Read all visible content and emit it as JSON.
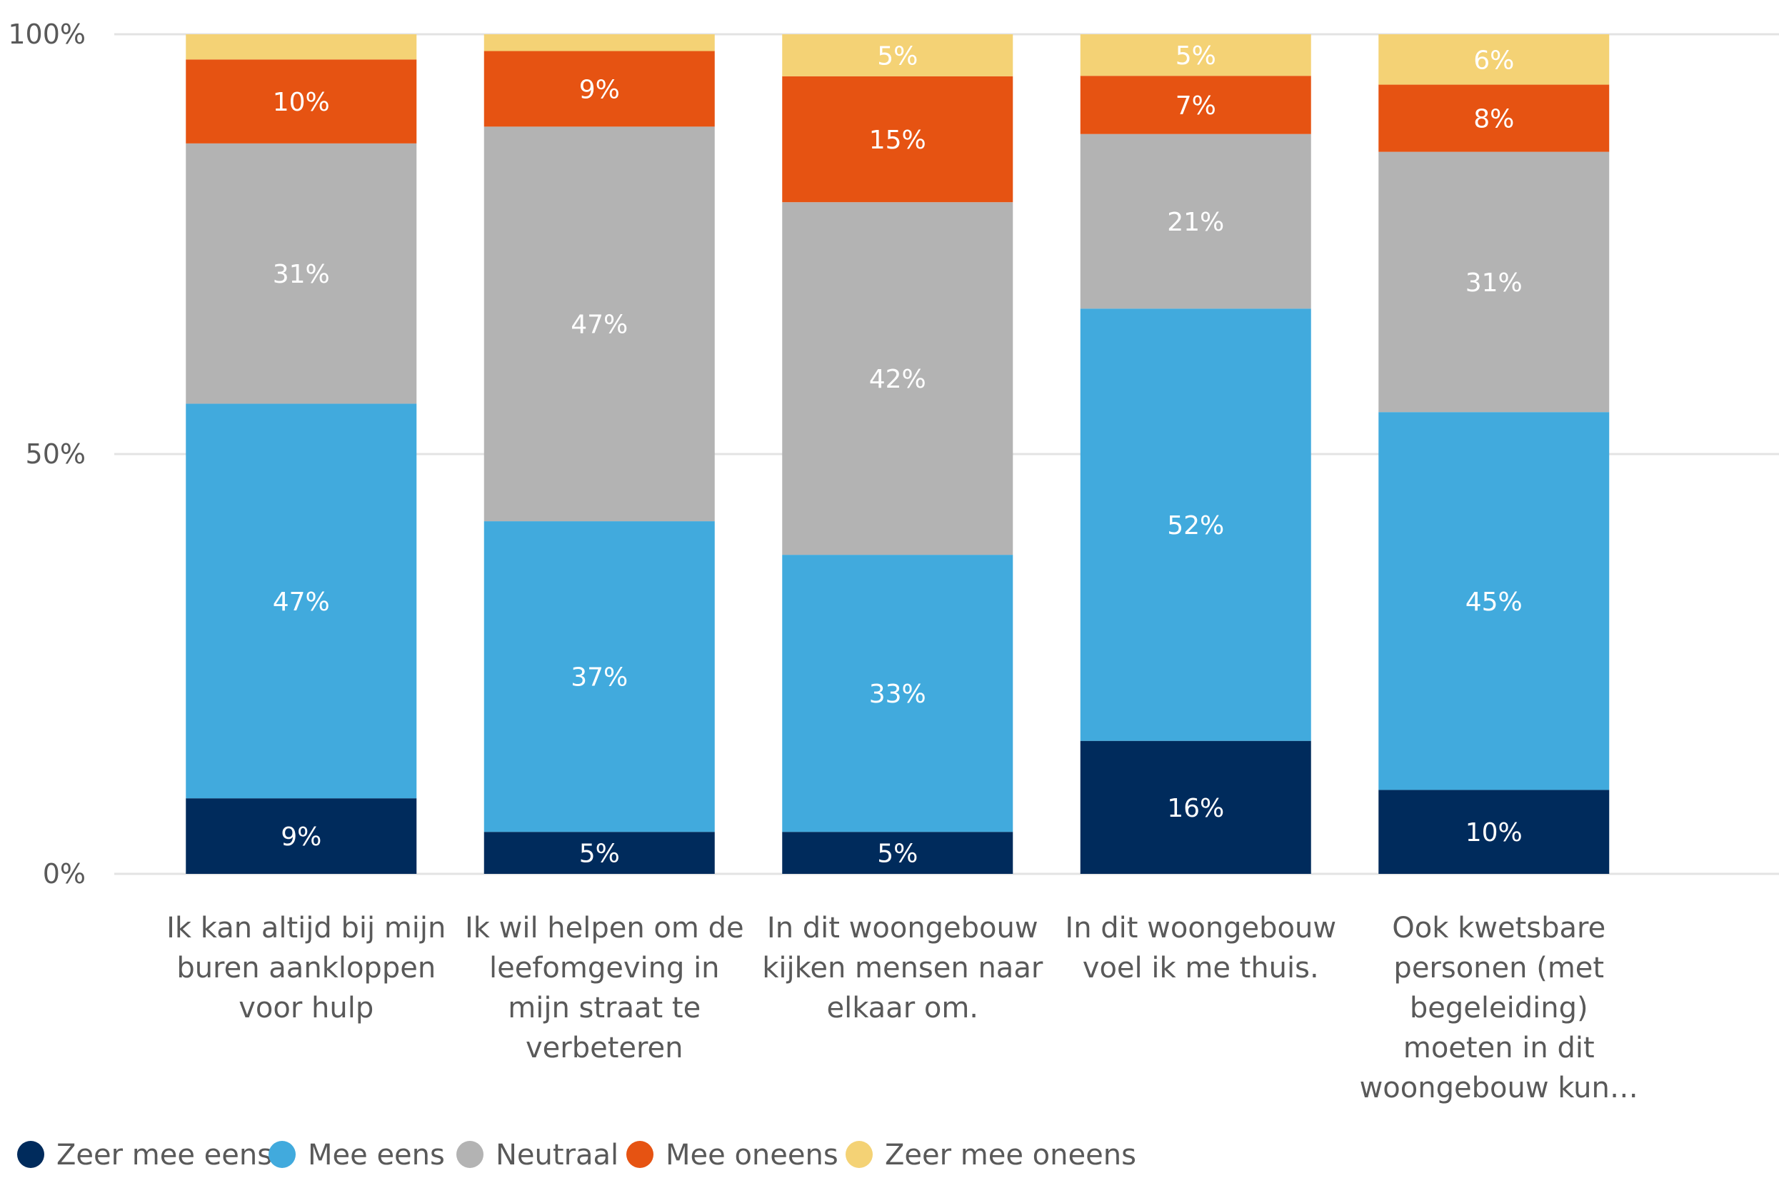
{
  "chart_data": {
    "type": "bar",
    "stacked": true,
    "normalized_100": true,
    "categories": [
      [
        "Ik kan altijd bij mijn",
        "buren aankloppen",
        "voor hulp"
      ],
      [
        "Ik wil helpen om de",
        "leefomgeving in",
        "mijn straat te",
        "verbeteren"
      ],
      [
        "In dit woongebouw",
        "kijken mensen naar",
        "elkaar om."
      ],
      [
        "In dit woongebouw",
        "voel ik me thuis."
      ],
      [
        "Ook kwetsbare",
        "personen (met",
        "begeleiding)",
        "moeten in dit",
        "woongebouw kun…"
      ]
    ],
    "series": [
      {
        "name": "Zeer mee eens",
        "color": "#002B5C",
        "values": [
          9,
          5,
          5,
          16,
          10
        ],
        "labels": [
          "9%",
          "5%",
          "5%",
          "16%",
          "10%"
        ]
      },
      {
        "name": "Mee eens",
        "color": "#41AADD",
        "values": [
          47,
          37,
          33,
          52,
          45
        ],
        "labels": [
          "47%",
          "37%",
          "33%",
          "52%",
          "45%"
        ]
      },
      {
        "name": "Neutraal",
        "color": "#B3B3B3",
        "values": [
          31,
          47,
          42,
          21,
          31
        ],
        "labels": [
          "31%",
          "47%",
          "42%",
          "21%",
          "31%"
        ]
      },
      {
        "name": "Mee oneens",
        "color": "#E65312",
        "values": [
          10,
          9,
          15,
          7,
          8
        ],
        "labels": [
          "10%",
          "9%",
          "15%",
          "7%",
          "8%"
        ]
      },
      {
        "name": "Zeer mee oneens",
        "color": "#F4D275",
        "values": [
          3,
          2,
          5,
          5,
          6
        ],
        "labels": [
          "",
          "",
          "5%",
          "5%",
          "6%"
        ]
      }
    ],
    "ylim": [
      0,
      100
    ],
    "yticks": [
      {
        "value": 0,
        "label": "0%"
      },
      {
        "value": 50,
        "label": "50%"
      },
      {
        "value": 100,
        "label": "100%"
      }
    ],
    "grid": true,
    "legend_position": "bottom-left"
  }
}
